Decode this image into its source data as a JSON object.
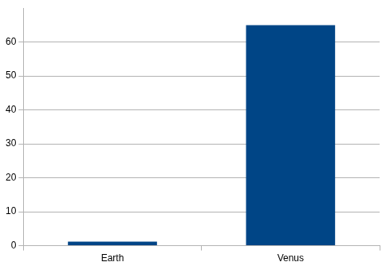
{
  "chart_data": {
    "type": "bar",
    "categories": [
      "Earth",
      "Venus"
    ],
    "values": [
      1.2,
      65
    ],
    "color": "#004586",
    "ylim": [
      0,
      70
    ],
    "yticks": [
      0,
      10,
      20,
      30,
      40,
      50,
      60
    ],
    "grid": true
  }
}
